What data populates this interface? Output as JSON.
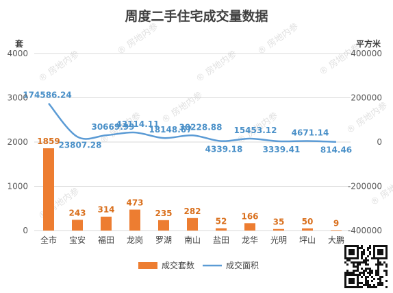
{
  "chart_data": {
    "type": "bar+line",
    "title": "周度二手住宅成交量数据",
    "y_left_unit": "套",
    "y_right_unit": "平方米",
    "y_left_ticks": [
      "0",
      "1000",
      "2000",
      "3000",
      "4000"
    ],
    "y_right_ticks": [
      "-400000",
      "-200000",
      "0",
      "200000",
      "400000"
    ],
    "ylim_left": [
      0,
      4000
    ],
    "ylim_right": [
      -400000,
      400000
    ],
    "categories": [
      "全市",
      "宝安",
      "福田",
      "龙岗",
      "罗湖",
      "南山",
      "盐田",
      "龙华",
      "光明",
      "坪山",
      "大鹏"
    ],
    "series": [
      {
        "name": "成交套数",
        "type": "bar",
        "axis": "left",
        "color": "#ed7d31",
        "values": [
          1859,
          243,
          314,
          473,
          235,
          282,
          52,
          166,
          35,
          50,
          9
        ],
        "labels": [
          "1859",
          "243",
          "314",
          "473",
          "235",
          "282",
          "52",
          "166",
          "35",
          "50",
          "9"
        ]
      },
      {
        "name": "成交面积",
        "type": "line",
        "axis": "right",
        "color": "#5b9bd5",
        "values": [
          174586.24,
          23807.28,
          30669.99,
          43114.11,
          18148.67,
          30228.88,
          4339.18,
          15453.12,
          3339.41,
          4671.14,
          814.46
        ],
        "labels": [
          "174586.24",
          "23807.28",
          "30669.99",
          "43114.11",
          "18148.67",
          "30228.88",
          "4339.18",
          "15453.12",
          "3339.41",
          "4671.14",
          "814.46"
        ]
      }
    ],
    "legend_position": "bottom",
    "grid": true
  },
  "watermark": "房地内参"
}
